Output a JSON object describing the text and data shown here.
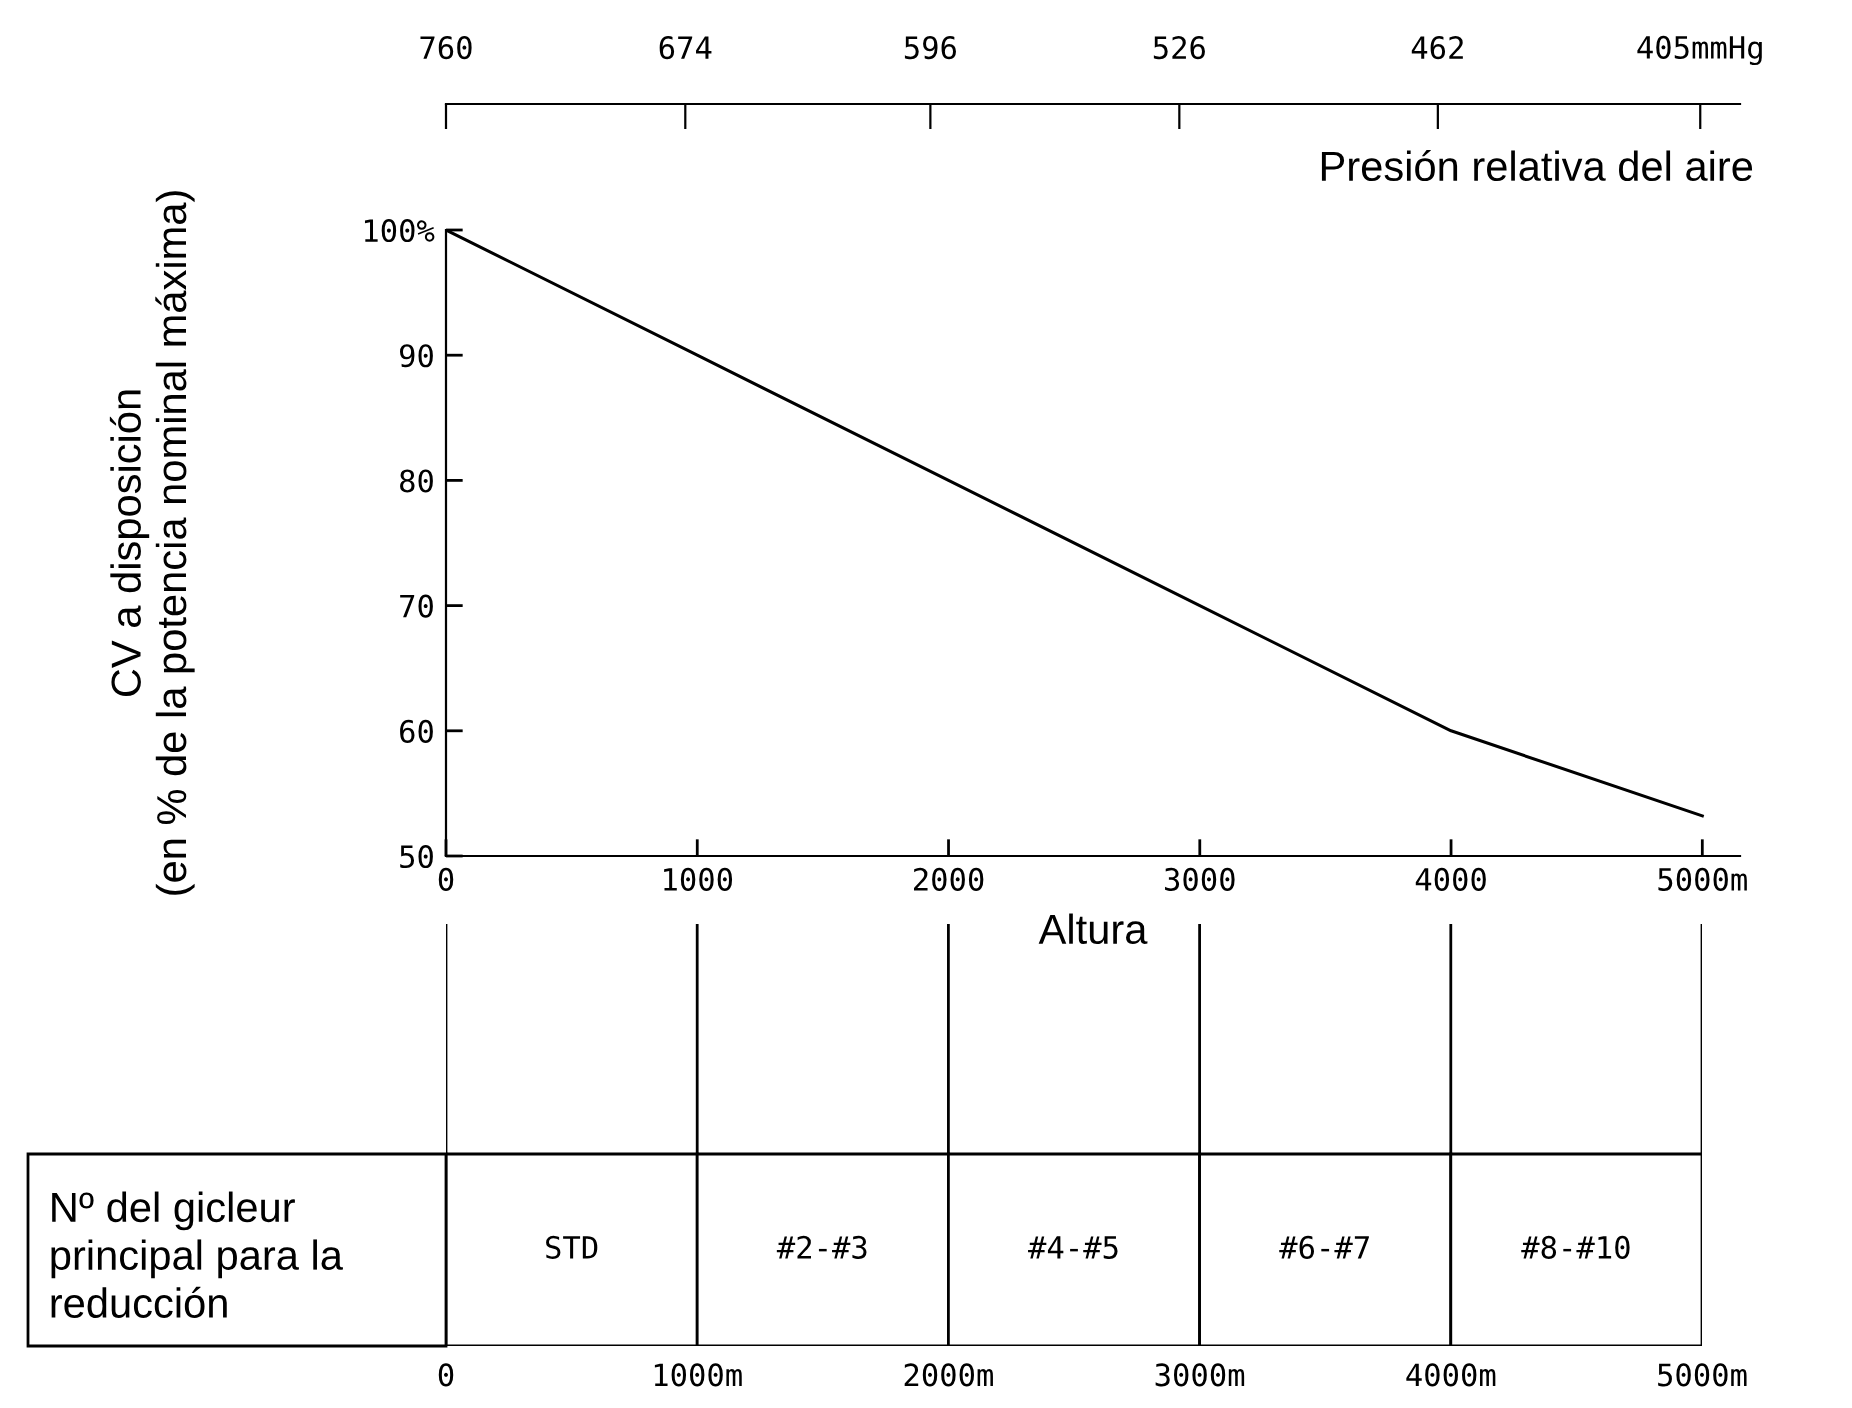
{
  "chart_data": [
    {
      "type": "line",
      "xlabel": "Altura",
      "ylabel": "CV a disposición\n(en % de la potencia nominal máxima)",
      "x2label": "Presión relativa del aire",
      "x": [
        0,
        1000,
        2000,
        3000,
        4000,
        5000
      ],
      "series": [
        {
          "color": "#000000",
          "values": [
            100,
            90,
            80,
            70,
            60,
            53.2
          ]
        }
      ],
      "xlim": [
        0,
        5150
      ],
      "xticks": [
        0,
        1000,
        2000,
        3000,
        4000,
        {
          "value": 5000,
          "label": "5000m"
        }
      ],
      "ylim": [
        50,
        100
      ],
      "yticks": [
        50,
        60,
        70,
        80,
        90,
        {
          "value": 100,
          "label": "100%"
        }
      ],
      "x2lim": [
        760,
        397
      ],
      "x2ticks": [
        760,
        674,
        596,
        526,
        462,
        {
          "value": 405,
          "label": "405mmHg"
        }
      ],
      "log": "x2",
      "legend": false,
      "marker": "none",
      "line_style": "solid"
    },
    {
      "type": "bar",
      "orientation": "horizontal",
      "stacked": true,
      "categories": [
        "Nº del gicleur\nprincipal para la\nreducción"
      ],
      "series": [
        {
          "color": "#ffffff",
          "values": [
            1000
          ],
          "value_labels": [
            "STD"
          ]
        },
        {
          "color": "#ffffff",
          "values": [
            1000
          ],
          "value_labels": [
            "#2-#3"
          ]
        },
        {
          "color": "#ffffff",
          "values": [
            1000
          ],
          "value_labels": [
            "#4-#5"
          ]
        },
        {
          "color": "#ffffff",
          "values": [
            1000
          ],
          "value_labels": [
            "#6-#7"
          ]
        },
        {
          "color": "#ffffff",
          "values": [
            1000
          ],
          "value_labels": [
            "#8-#10"
          ]
        }
      ],
      "xlim": [
        0,
        5000
      ],
      "xticks": [
        0,
        {
          "value": 1000,
          "label": "1000m"
        },
        {
          "value": 2000,
          "label": "2000m"
        },
        {
          "value": 3000,
          "label": "3000m"
        },
        {
          "value": 4000,
          "label": "4000m"
        },
        {
          "value": 5000,
          "label": "5000m"
        }
      ],
      "grid": "x"
    }
  ]
}
